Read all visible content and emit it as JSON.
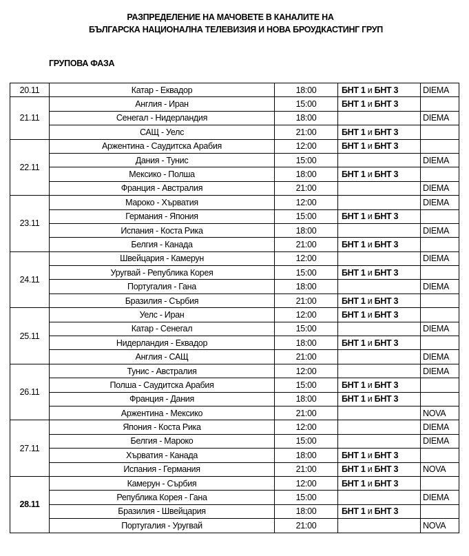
{
  "title_line1": "РАЗПРЕДЕЛЕНИЕ НА МАЧОВЕТЕ В КАНАЛИТЕ НА",
  "title_line2": "БЪЛГАРСКА НАЦИОНАЛНА ТЕЛЕВИЗИЯ И НОВА БРОУДКАСТИНГ ГРУП",
  "phase": "ГРУПОВА ФАЗА",
  "bnt": {
    "a": "БНТ 1",
    "and": "и",
    "b": "БНТ 3"
  },
  "days": [
    {
      "date": "20.11",
      "matches": [
        {
          "match": "Катар - Еквадор",
          "time": "18:00",
          "bnt": true,
          "other": "DIEMA"
        }
      ]
    },
    {
      "date": "21.11",
      "matches": [
        {
          "match": "Англия - Иран",
          "time": "15:00",
          "bnt": true,
          "other": ""
        },
        {
          "match": "Сенегал - Нидерландия",
          "time": "18:00",
          "bnt": false,
          "other": "DIEMA"
        },
        {
          "match": "САЩ - Уелс",
          "time": "21:00",
          "bnt": true,
          "other": ""
        }
      ]
    },
    {
      "date": "22.11",
      "matches": [
        {
          "match": "Аржентина - Саудитска Арабия",
          "time": "12:00",
          "bnt": true,
          "other": ""
        },
        {
          "match": "Дания - Тунис",
          "time": "15:00",
          "bnt": false,
          "other": "DIEMA"
        },
        {
          "match": "Мексико - Полша",
          "time": "18:00",
          "bnt": true,
          "other": ""
        },
        {
          "match": "Франция - Австралия",
          "time": "21:00",
          "bnt": false,
          "other": "DIEMA"
        }
      ]
    },
    {
      "date": "23.11",
      "matches": [
        {
          "match": "Мароко - Хърватия",
          "time": "12:00",
          "bnt": false,
          "other": "DIEMA"
        },
        {
          "match": "Германия - Япония",
          "time": "15:00",
          "bnt": true,
          "other": ""
        },
        {
          "match": "Испания - Коста Рика",
          "time": "18:00",
          "bnt": false,
          "other": "DIEMA"
        },
        {
          "match": "Белгия - Канада",
          "time": "21:00",
          "bnt": true,
          "other": ""
        }
      ]
    },
    {
      "date": "24.11",
      "matches": [
        {
          "match": "Швейцария - Камерун",
          "time": "12:00",
          "bnt": false,
          "other": "DIEMA"
        },
        {
          "match": "Уругвай - Република Корея",
          "time": "15:00",
          "bnt": true,
          "other": ""
        },
        {
          "match": "Португалия - Гана",
          "time": "18:00",
          "bnt": false,
          "other": "DIEMA"
        },
        {
          "match": "Бразилия - Сърбия",
          "time": "21:00",
          "bnt": true,
          "other": ""
        }
      ]
    },
    {
      "date": "25.11",
      "matches": [
        {
          "match": "Уелс - Иран",
          "time": "12:00",
          "bnt": true,
          "other": ""
        },
        {
          "match": "Катар - Сенегал",
          "time": "15:00",
          "bnt": false,
          "other": "DIEMA"
        },
        {
          "match": "Нидерландия - Еквадор",
          "time": "18:00",
          "bnt": true,
          "other": ""
        },
        {
          "match": "Англия - САЩ",
          "time": "21:00",
          "bnt": false,
          "other": "DIEMA"
        }
      ]
    },
    {
      "date": "26.11",
      "matches": [
        {
          "match": "Тунис - Австралия",
          "time": "12:00",
          "bnt": false,
          "other": "DIEMA"
        },
        {
          "match": "Полша - Саудитска Арабия",
          "time": "15:00",
          "bnt": true,
          "other": ""
        },
        {
          "match": "Франция - Дания",
          "time": "18:00",
          "bnt": true,
          "other": ""
        },
        {
          "match": "Аржентина - Мексико",
          "time": "21:00",
          "bnt": false,
          "other": "NOVA"
        }
      ]
    },
    {
      "date": "27.11",
      "matches": [
        {
          "match": "Япония - Коста Рика",
          "time": "12:00",
          "bnt": false,
          "other": "DIEMA"
        },
        {
          "match": "Белгия - Мароко",
          "time": "15:00",
          "bnt": false,
          "other": "DIEMA"
        },
        {
          "match": "Хърватия - Канада",
          "time": "18:00",
          "bnt": true,
          "other": ""
        },
        {
          "match": "Испания - Германия",
          "time": "21:00",
          "bnt": true,
          "other": "NOVA"
        }
      ]
    },
    {
      "date": "28.11",
      "bold": true,
      "matches": [
        {
          "match": "Камерун - Сърбия",
          "time": "12:00",
          "bnt": true,
          "other": ""
        },
        {
          "match": "Република Корея - Гана",
          "time": "15:00",
          "bnt": false,
          "other": "DIEMA"
        },
        {
          "match": "Бразилия - Швейцария",
          "time": "18:00",
          "bnt": true,
          "other": ""
        },
        {
          "match": "Португалия - Уругвай",
          "time": "21:00",
          "bnt": false,
          "other": "NOVA"
        }
      ]
    }
  ]
}
